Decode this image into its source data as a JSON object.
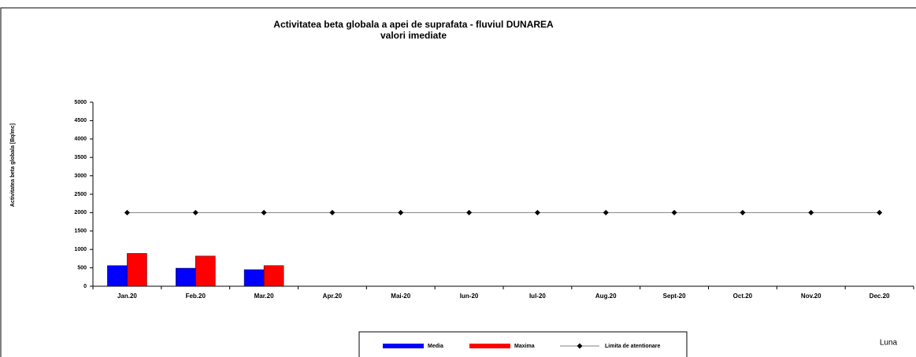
{
  "chart_data": {
    "type": "bar",
    "title": "Activitatea beta globala a apei de suprafata - fluviul DUNAREA",
    "subtitle": "valori imediate",
    "y_label": "Activitatea beta globala [Bq/mc]",
    "x_label": "Luna",
    "categories": [
      "Jan.20",
      "Feb.20",
      "Mar.20",
      "Apr.20",
      "Mai-20",
      "Iun-20",
      "Iul-20",
      "Aug.20",
      "Sept-20",
      "Oct.20",
      "Nov.20",
      "Dec.20"
    ],
    "series": [
      {
        "name": "Media",
        "color": "#0000ff",
        "type": "bar",
        "values": [
          560,
          490,
          450,
          null,
          null,
          null,
          null,
          null,
          null,
          null,
          null,
          null
        ]
      },
      {
        "name": "Maxima",
        "color": "#ff0000",
        "type": "bar",
        "values": [
          890,
          820,
          560,
          null,
          null,
          null,
          null,
          null,
          null,
          null,
          null,
          null
        ]
      },
      {
        "name": "Limita de atentionare",
        "color": "#000000",
        "type": "line",
        "values": [
          2000,
          2000,
          2000,
          2000,
          2000,
          2000,
          2000,
          2000,
          2000,
          2000,
          2000,
          2000
        ]
      }
    ],
    "ylim": [
      0,
      5000
    ],
    "yticks": [
      0,
      500,
      1000,
      1500,
      2000,
      2500,
      3000,
      3500,
      4000,
      4500,
      5000
    ],
    "grid": false,
    "legend": "bottom"
  }
}
